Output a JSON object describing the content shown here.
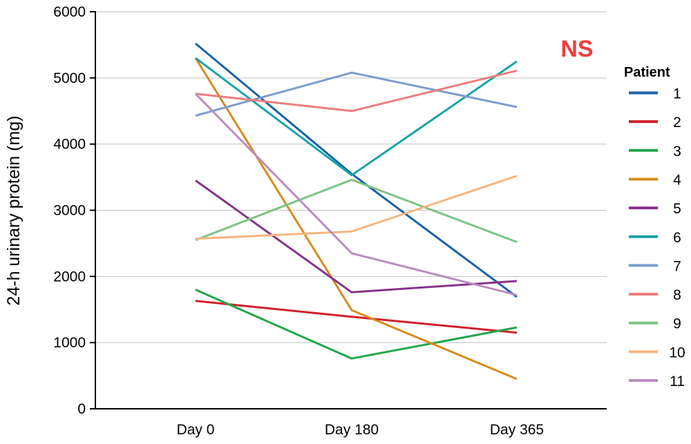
{
  "chart_data": {
    "type": "line",
    "title": "",
    "xlabel": "",
    "ylabel": "24-h urinary protein (mg)",
    "categories": [
      "Day 0",
      "Day 180",
      "Day 365"
    ],
    "ylim": [
      0,
      6000
    ],
    "yticks": [
      "0",
      "1000",
      "2000",
      "3000",
      "4000",
      "5000",
      "6000"
    ],
    "grid": true,
    "legend_position": "right",
    "legend_title": "Patient",
    "annotation": {
      "text": "NS",
      "color": "#f03c3c"
    },
    "series": [
      {
        "name": "1",
        "color": "#1a62a8",
        "values": [
          5520,
          3550,
          1690
        ]
      },
      {
        "name": "2",
        "color": "#d0202a",
        "values": [
          1630,
          1390,
          1150
        ]
      },
      {
        "name": "3",
        "color": "#23a64a",
        "values": [
          1800,
          760,
          1230
        ]
      },
      {
        "name": "4",
        "color": "#d88a1e",
        "values": [
          5300,
          1490,
          450
        ]
      },
      {
        "name": "5",
        "color": "#86338a",
        "values": [
          3450,
          1760,
          1930
        ]
      },
      {
        "name": "6",
        "color": "#17a4a6",
        "values": [
          5300,
          3530,
          5250
        ]
      },
      {
        "name": "7",
        "color": "#7b9ccf",
        "values": [
          4430,
          5080,
          4560
        ]
      },
      {
        "name": "8",
        "color": "#ed7d7d",
        "values": [
          4760,
          4500,
          5110
        ]
      },
      {
        "name": "9",
        "color": "#7cc383",
        "values": [
          2550,
          3460,
          2520
        ]
      },
      {
        "name": "10",
        "color": "#f5b57f",
        "values": [
          2570,
          2680,
          3520
        ]
      },
      {
        "name": "11",
        "color": "#b98dbf",
        "values": [
          4760,
          2350,
          1720
        ]
      }
    ]
  }
}
